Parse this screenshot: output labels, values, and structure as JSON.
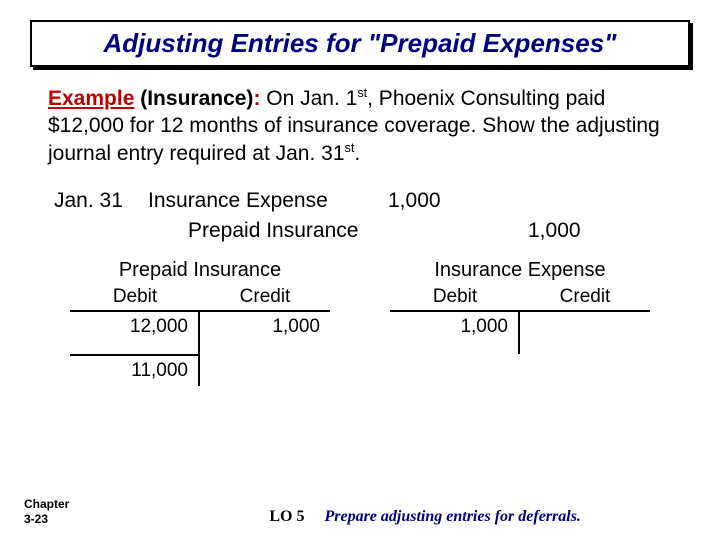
{
  "title": "Adjusting Entries for \"Prepaid Expenses\"",
  "example": {
    "label": "Example",
    "qualifier": "(Insurance)",
    "text_before_sup1": "On Jan. 1",
    "sup1": "st",
    "text_mid": ", Phoenix Consulting paid $12,000 for 12 months of insurance coverage.  Show the adjusting journal entry required at Jan. 31",
    "sup2": "st",
    "text_end": "."
  },
  "journal": {
    "date": "Jan. 31",
    "debit_account": "Insurance Expense",
    "debit_amount": "1,000",
    "credit_account": "Prepaid Insurance",
    "credit_amount": "1,000"
  },
  "t_left": {
    "title": "Prepaid Insurance",
    "head_debit": "Debit",
    "head_credit": "Credit",
    "debit_val": "12,000",
    "credit_val": "1,000",
    "balance": "11,000"
  },
  "t_right": {
    "title": "Insurance Expense",
    "head_debit": "Debit",
    "head_credit": "Credit",
    "debit_val": "1,000",
    "credit_val": ""
  },
  "footer": {
    "chapter_line1": "Chapter",
    "chapter_line2": "3-23",
    "lo": "LO 5",
    "lo_desc": "Prepare adjusting entries for deferrals."
  }
}
